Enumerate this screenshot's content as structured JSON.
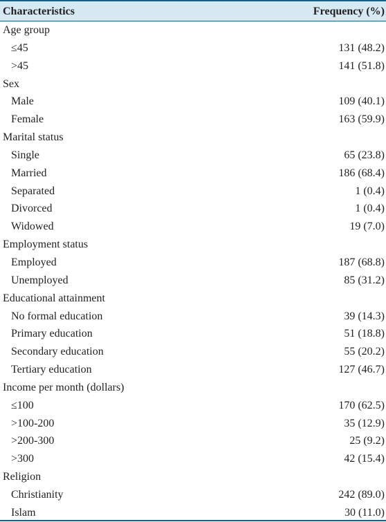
{
  "header": {
    "characteristics": "Characteristics",
    "frequency": "Frequency (%)"
  },
  "rows": [
    {
      "type": "group",
      "label": "Age group",
      "value": ""
    },
    {
      "type": "item",
      "label": "≤45",
      "value": "131 (48.2)"
    },
    {
      "type": "item",
      "label": ">45",
      "value": "141 (51.8)"
    },
    {
      "type": "group",
      "label": "Sex",
      "value": ""
    },
    {
      "type": "item",
      "label": "Male",
      "value": "109 (40.1)"
    },
    {
      "type": "item",
      "label": "Female",
      "value": "163 (59.9)"
    },
    {
      "type": "group",
      "label": "Marital status",
      "value": ""
    },
    {
      "type": "item",
      "label": "Single",
      "value": "65 (23.8)"
    },
    {
      "type": "item",
      "label": "Married",
      "value": "186 (68.4)"
    },
    {
      "type": "item",
      "label": "Separated",
      "value": "1 (0.4)"
    },
    {
      "type": "item",
      "label": "Divorced",
      "value": "1 (0.4)"
    },
    {
      "type": "item",
      "label": "Widowed",
      "value": "19 (7.0)"
    },
    {
      "type": "group",
      "label": "Employment status",
      "value": ""
    },
    {
      "type": "item",
      "label": "Employed",
      "value": "187 (68.8)"
    },
    {
      "type": "item",
      "label": "Unemployed",
      "value": "85 (31.2)"
    },
    {
      "type": "group",
      "label": "Educational attainment",
      "value": ""
    },
    {
      "type": "item",
      "label": "No formal education",
      "value": "39 (14.3)"
    },
    {
      "type": "item",
      "label": "Primary education",
      "value": "51 (18.8)"
    },
    {
      "type": "item",
      "label": "Secondary education",
      "value": "55 (20.2)"
    },
    {
      "type": "item",
      "label": "Tertiary education",
      "value": "127 (46.7)"
    },
    {
      "type": "group",
      "label": "Income per month (dollars)",
      "value": ""
    },
    {
      "type": "item",
      "label": "≤100",
      "value": "170 (62.5)"
    },
    {
      "type": "item",
      "label": ">100-200",
      "value": "35 (12.9)"
    },
    {
      "type": "item",
      "label": ">200-300",
      "value": "25 (9.2)"
    },
    {
      "type": "item",
      "label": ">300",
      "value": "42 (15.4)"
    },
    {
      "type": "group",
      "label": "Religion",
      "value": ""
    },
    {
      "type": "item",
      "label": "Christianity",
      "value": "242 (89.0)"
    },
    {
      "type": "item",
      "label": "Islam",
      "value": "30 (11.0)"
    }
  ]
}
